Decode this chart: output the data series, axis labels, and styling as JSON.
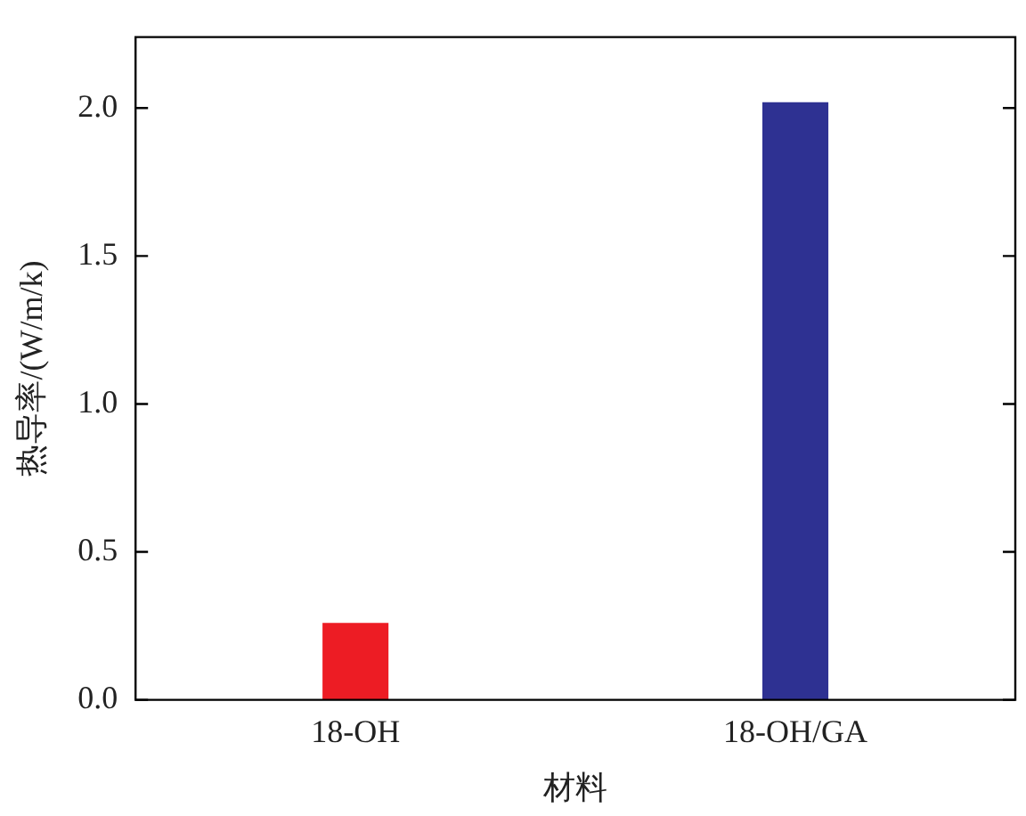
{
  "chart_data": {
    "type": "bar",
    "xlabel": "材料",
    "ylabel": "热导率/(W/m/k)",
    "categories": [
      "18-OH",
      "18-OH/GA"
    ],
    "values": [
      0.26,
      2.02
    ],
    "colors": [
      "#ed1c24",
      "#2e3192"
    ],
    "ylim": [
      0,
      2.24
    ],
    "yticks": [
      {
        "value": 0,
        "label": "0.0"
      },
      {
        "value": 0.5,
        "label": "0.5"
      },
      {
        "value": 1,
        "label": "1.0"
      },
      {
        "value": 1.5,
        "label": "1.5"
      },
      {
        "value": 2,
        "label": "2.0"
      }
    ],
    "grid": false,
    "legend": false
  }
}
